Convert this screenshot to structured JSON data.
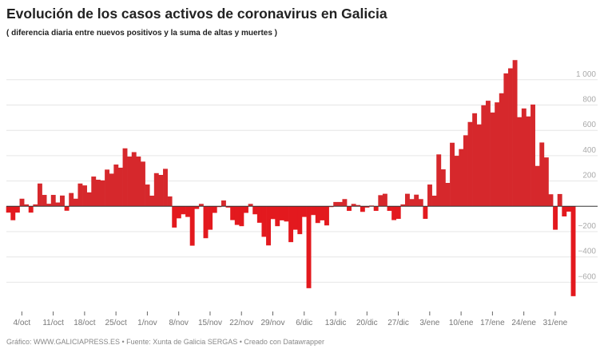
{
  "header": {
    "title": "Evolución de los casos activos de coronavirus en Galicia",
    "subtitle": "( diferencia diaria entre nuevos positivos y la suma de altas y muertes )"
  },
  "footer": {
    "text": "Gráfico: WWW.GALICIAPRESS.ES • Fuente: Xunta de Galicia SERGAS • Creado con Datawrapper"
  },
  "colors": {
    "positive": "#d6282c",
    "negative": "#e3191e",
    "baseline": "#333333",
    "grid": "#e6e6e6"
  },
  "chart_data": {
    "type": "bar",
    "title": "Evolución de los casos activos de coronavirus en Galicia",
    "xlabel": "",
    "ylabel": "",
    "ylim": [
      -780,
      1180
    ],
    "grid": true,
    "yticks": [
      1000,
      800,
      600,
      400,
      200,
      -200,
      -400,
      -600
    ],
    "ytick_labels": [
      "1 000",
      "800",
      "600",
      "400",
      "200",
      "−200",
      "−400",
      "−600"
    ],
    "xtick_labels": [
      "4/oct",
      "11/oct",
      "18/oct",
      "25/oct",
      "1/nov",
      "8/nov",
      "15/nov",
      "22/nov",
      "29/nov",
      "6/dic",
      "13/dic",
      "20/dic",
      "27/dic",
      "3/ene",
      "10/ene",
      "17/ene",
      "24/ene",
      "31/ene"
    ],
    "x_start": "1/oct",
    "x_end": "4/feb",
    "values": [
      -50,
      -110,
      -50,
      60,
      15,
      -50,
      15,
      180,
      90,
      20,
      90,
      30,
      85,
      -35,
      105,
      60,
      180,
      165,
      110,
      235,
      210,
      205,
      290,
      258,
      330,
      305,
      458,
      393,
      428,
      393,
      353,
      172,
      84,
      262,
      248,
      296,
      78,
      -168,
      -95,
      -63,
      -84,
      -311,
      -21,
      19,
      -252,
      -185,
      -52,
      -6,
      46,
      -10,
      -109,
      -147,
      -157,
      -52,
      19,
      -63,
      -130,
      -241,
      -309,
      -101,
      -157,
      -111,
      -120,
      -283,
      -185,
      -220,
      -84,
      -647,
      -69,
      -132,
      -111,
      -151,
      -6,
      34,
      34,
      57,
      -36,
      19,
      10,
      -44,
      -10,
      6,
      -36,
      88,
      99,
      -36,
      -109,
      -99,
      15,
      99,
      57,
      92,
      57,
      -99,
      172,
      84,
      410,
      292,
      185,
      502,
      399,
      452,
      561,
      666,
      735,
      647,
      798,
      834,
      741,
      821,
      893,
      1050,
      1090,
      1155,
      704,
      773,
      710,
      804,
      319,
      504,
      386,
      95,
      -185,
      97,
      -80,
      -42,
      -710
    ]
  }
}
